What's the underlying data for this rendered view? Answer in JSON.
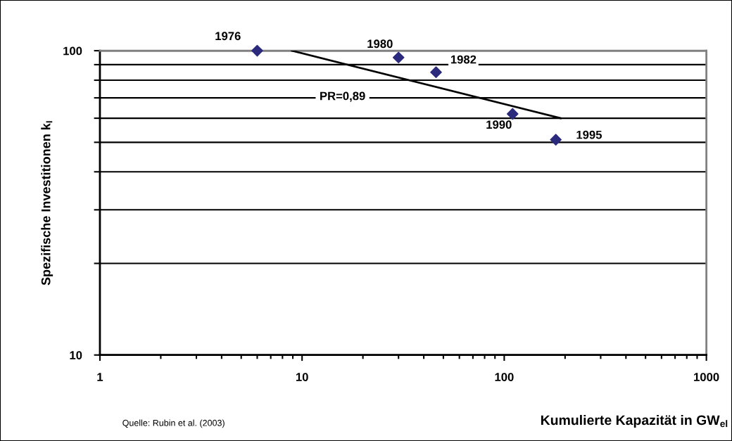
{
  "chart_data": {
    "type": "scatter",
    "xlabel": "Kumulierte Kapazität in GW$_{el}$",
    "ylabel": "Spezifische Investitionen k$_{I}$",
    "x": [
      6,
      30,
      46,
      110,
      180
    ],
    "series": [
      {
        "color": "#2b2a7c",
        "values": [
          100,
          95,
          85,
          62,
          51
        ],
        "marker": "diamond"
      },
      {
        "type": "line",
        "color": "#000000",
        "x": [
          8.9,
          190
        ],
        "values": [
          100,
          60
        ],
        "marker": "none",
        "line_style": "solid"
      }
    ],
    "log": "xy",
    "xlim": [
      1,
      1000
    ],
    "ylim": [
      10,
      100
    ],
    "xticks": [
      1,
      10,
      100,
      1000
    ],
    "yticks": [
      10,
      {
        "value": 20,
        "label": null
      },
      {
        "value": 30,
        "label": null
      },
      {
        "value": 40,
        "label": null
      },
      {
        "value": 50,
        "label": null
      },
      {
        "value": 60,
        "label": null
      },
      {
        "value": 70,
        "label": null
      },
      {
        "value": 80,
        "label": null
      },
      {
        "value": 90,
        "label": null
      },
      100
    ],
    "grid": "y",
    "annotations": [
      {
        "text": "1976",
        "x": 6,
        "y": 100
      },
      {
        "text": "1980",
        "x": 30,
        "y": 95
      },
      {
        "text": "1982",
        "x": 46,
        "y": 85
      },
      {
        "text": "1990",
        "x": 110,
        "y": 62
      },
      {
        "text": "1995",
        "x": 180,
        "y": 51
      },
      "PR=0,89",
      "Quelle: Rubin et al. (2003)"
    ]
  }
}
